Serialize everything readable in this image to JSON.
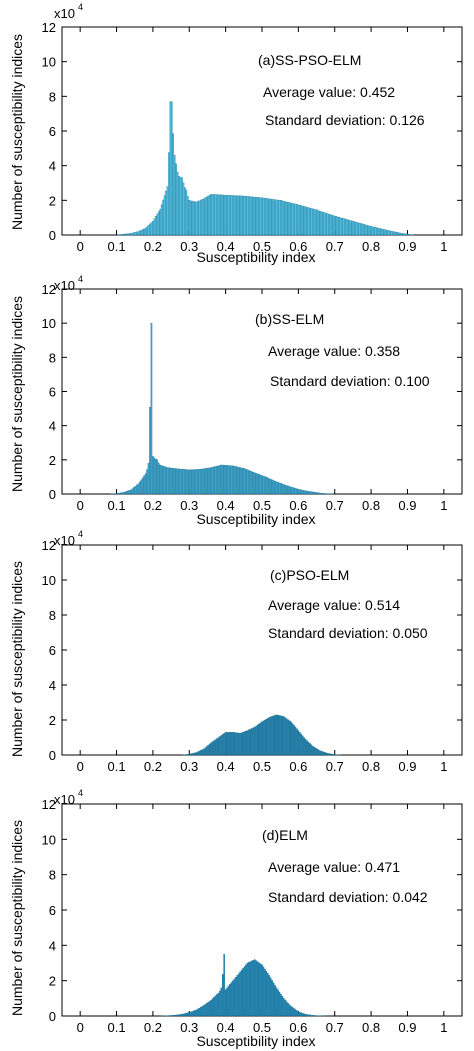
{
  "colors": {
    "bar_light": "#4FC3E3",
    "bar_dark": "#1C86B3",
    "axis": "#000000"
  },
  "chart_data": [
    {
      "type": "bar",
      "panel": "(a)SS-PSO-ELM",
      "title": "(a)SS-PSO-ELM",
      "average_label": "Average value: 0.452",
      "std_label": "Standard deviation: 0.126",
      "xlabel": "Susceptibility index",
      "ylabel": "Number of susceptibility indices",
      "y_multiplier": "x10",
      "y_exponent": "4",
      "xlim": [
        -0.05,
        1.05
      ],
      "ylim": [
        0,
        12
      ],
      "xticks": [
        "0",
        "0.1",
        "0.2",
        "0.3",
        "0.4",
        "0.5",
        "0.6",
        "0.7",
        "0.8",
        "0.9",
        "1"
      ],
      "yticks": [
        "0",
        "2",
        "4",
        "6",
        "8",
        "10",
        "12"
      ],
      "color": "#4FC3E3",
      "x": [
        0.1,
        0.12,
        0.14,
        0.16,
        0.18,
        0.2,
        0.22,
        0.24,
        0.25,
        0.26,
        0.27,
        0.28,
        0.29,
        0.3,
        0.32,
        0.34,
        0.36,
        0.4,
        0.45,
        0.5,
        0.55,
        0.6,
        0.65,
        0.7,
        0.75,
        0.8,
        0.85,
        0.88,
        0.9,
        0.92
      ],
      "y": [
        0.0,
        0.05,
        0.1,
        0.2,
        0.4,
        0.8,
        1.5,
        2.8,
        7.7,
        4.6,
        3.4,
        3.3,
        2.6,
        2.0,
        1.9,
        2.1,
        2.35,
        2.3,
        2.25,
        2.15,
        2.0,
        1.75,
        1.45,
        1.1,
        0.8,
        0.5,
        0.25,
        0.12,
        0.05,
        0.0
      ]
    },
    {
      "type": "bar",
      "panel": "(b)SS-ELM",
      "title": "(b)SS-ELM",
      "average_label": "Average value: 0.358",
      "std_label": "Standard deviation: 0.100",
      "xlabel": "Susceptibility index",
      "ylabel": "Number of susceptibility indices",
      "y_multiplier": "x10",
      "y_exponent": "4",
      "xlim": [
        -0.05,
        1.05
      ],
      "ylim": [
        0,
        12
      ],
      "xticks": [
        "0",
        "0.1",
        "0.2",
        "0.3",
        "0.4",
        "0.5",
        "0.6",
        "0.7",
        "0.8",
        "0.9",
        "1"
      ],
      "yticks": [
        "0",
        "2",
        "4",
        "6",
        "8",
        "10",
        "12"
      ],
      "color": "#3AA6CC",
      "x": [
        0.08,
        0.1,
        0.12,
        0.14,
        0.16,
        0.18,
        0.19,
        0.195,
        0.2,
        0.21,
        0.22,
        0.24,
        0.26,
        0.28,
        0.3,
        0.33,
        0.36,
        0.39,
        0.42,
        0.45,
        0.48,
        0.51,
        0.54,
        0.57,
        0.6,
        0.63,
        0.66,
        0.68,
        0.7
      ],
      "y": [
        0.0,
        0.03,
        0.1,
        0.25,
        0.6,
        1.2,
        1.8,
        10.0,
        2.2,
        2.0,
        1.7,
        1.55,
        1.5,
        1.45,
        1.42,
        1.45,
        1.55,
        1.7,
        1.65,
        1.5,
        1.25,
        1.0,
        0.72,
        0.48,
        0.28,
        0.15,
        0.06,
        0.02,
        0.0
      ]
    },
    {
      "type": "bar",
      "panel": "(c)PSO-ELM",
      "title": "(c)PSO-ELM",
      "average_label": "Average value: 0.514",
      "std_label": "Standard deviation: 0.050",
      "xlabel": "",
      "ylabel": "Number of susceptibility indices",
      "y_multiplier": "x10",
      "y_exponent": "4",
      "xlim": [
        -0.05,
        1.05
      ],
      "ylim": [
        0,
        12
      ],
      "xticks": [
        "0",
        "0.1",
        "0.2",
        "0.3",
        "0.4",
        "0.5",
        "0.6",
        "0.7",
        "0.8",
        "0.9",
        "1"
      ],
      "yticks": [
        "0",
        "2",
        "4",
        "6",
        "8",
        "10",
        "12"
      ],
      "color": "#1F7FAA",
      "x": [
        0.28,
        0.3,
        0.32,
        0.34,
        0.36,
        0.38,
        0.4,
        0.42,
        0.44,
        0.46,
        0.48,
        0.5,
        0.52,
        0.54,
        0.56,
        0.58,
        0.6,
        0.62,
        0.64,
        0.66,
        0.68,
        0.7,
        0.72
      ],
      "y": [
        0.0,
        0.05,
        0.15,
        0.35,
        0.7,
        1.0,
        1.3,
        1.3,
        1.25,
        1.4,
        1.6,
        1.9,
        2.15,
        2.3,
        2.2,
        1.9,
        1.4,
        0.9,
        0.5,
        0.25,
        0.1,
        0.03,
        0.0
      ]
    },
    {
      "type": "bar",
      "panel": "(d)ELM",
      "title": "(d)ELM",
      "average_label": "Average value: 0.471",
      "std_label": "Standard deviation: 0.042",
      "xlabel": "Susceptibility index",
      "ylabel": "Number of susceptibility indices",
      "y_multiplier": "x10",
      "y_exponent": "4",
      "xlim": [
        -0.05,
        1.05
      ],
      "ylim": [
        0,
        12
      ],
      "xticks": [
        "0",
        "0.1",
        "0.2",
        "0.3",
        "0.4",
        "0.5",
        "0.6",
        "0.7",
        "0.8",
        "0.9",
        "1"
      ],
      "yticks": [
        "0",
        "2",
        "4",
        "6",
        "8",
        "10",
        "12"
      ],
      "color": "#1C86B3",
      "x": [
        0.22,
        0.25,
        0.28,
        0.3,
        0.32,
        0.34,
        0.36,
        0.38,
        0.39,
        0.395,
        0.4,
        0.42,
        0.44,
        0.46,
        0.48,
        0.5,
        0.52,
        0.54,
        0.56,
        0.58,
        0.6,
        0.62,
        0.64,
        0.66,
        0.68
      ],
      "y": [
        0.0,
        0.03,
        0.1,
        0.2,
        0.35,
        0.6,
        0.9,
        1.3,
        1.6,
        3.5,
        1.5,
        2.0,
        2.5,
        3.0,
        3.2,
        2.9,
        2.3,
        1.6,
        1.0,
        0.55,
        0.25,
        0.1,
        0.04,
        0.01,
        0.0
      ]
    }
  ]
}
